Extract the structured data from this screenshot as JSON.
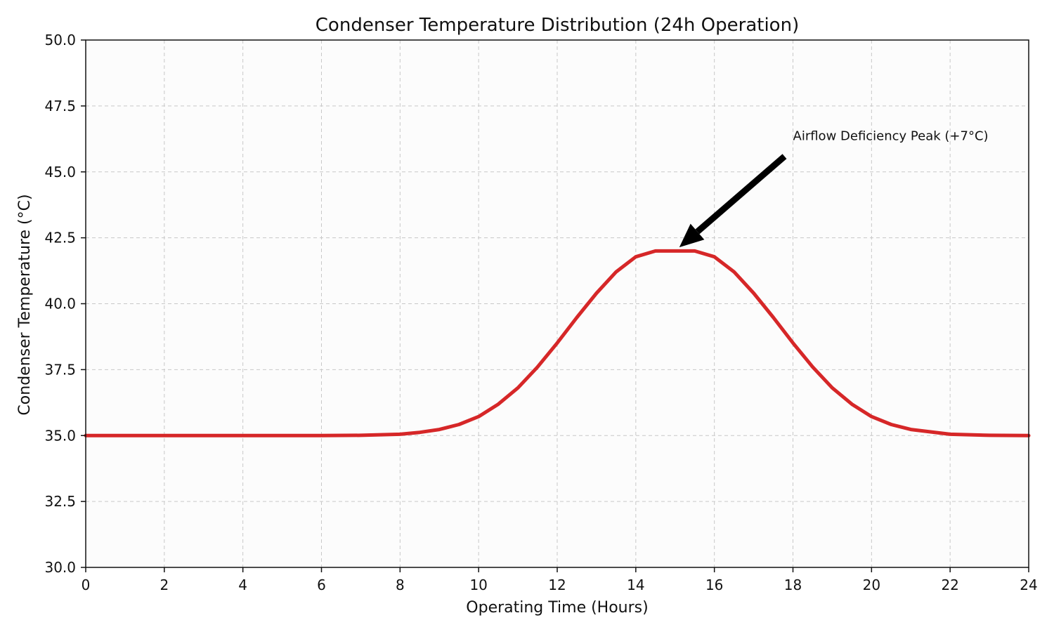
{
  "chart_data": {
    "type": "line",
    "title": "Condenser Temperature Distribution (24h Operation)",
    "xlabel": "Operating Time (Hours)",
    "ylabel": "Condenser Temperature (°C)",
    "xlim": [
      0,
      24
    ],
    "ylim": [
      30,
      50
    ],
    "xticks": [
      0,
      2,
      4,
      6,
      8,
      10,
      12,
      14,
      16,
      18,
      20,
      22,
      24
    ],
    "xtick_labels": [
      "0",
      "2",
      "4",
      "6",
      "8",
      "10",
      "12",
      "14",
      "16",
      "18",
      "20",
      "22",
      "24"
    ],
    "yticks": [
      30,
      32.5,
      35,
      37.5,
      40,
      42.5,
      45,
      47.5,
      50
    ],
    "ytick_labels": [
      "30.0",
      "32.5",
      "35.0",
      "37.5",
      "40.0",
      "42.5",
      "45.0",
      "47.5",
      "50.0"
    ],
    "grid": true,
    "series": [
      {
        "color": "#d62728",
        "x": [
          0,
          1,
          2,
          3,
          4,
          5,
          6,
          7,
          7.5,
          8,
          8.5,
          9,
          9.5,
          10,
          10.5,
          11,
          11.5,
          12,
          12.5,
          13,
          13.5,
          14,
          14.5,
          15,
          15.5,
          16,
          16.5,
          17,
          17.5,
          18,
          18.5,
          19,
          19.5,
          20,
          20.5,
          21,
          22,
          23,
          24
        ],
        "y": [
          35.0,
          35.0,
          35.0,
          35.0,
          35.0,
          35.0,
          35.0,
          35.01,
          35.03,
          35.05,
          35.12,
          35.23,
          35.42,
          35.72,
          36.19,
          36.81,
          37.6,
          38.51,
          39.48,
          40.4,
          41.21,
          41.78,
          42.0,
          42.0,
          42.0,
          41.78,
          41.21,
          40.4,
          39.48,
          38.51,
          37.6,
          36.81,
          36.19,
          35.72,
          35.42,
          35.23,
          35.05,
          35.01,
          35.0
        ]
      }
    ],
    "annotations": [
      {
        "text": "Airflow Deficiency Peak (+7°C)",
        "point": [
          15,
          42
        ],
        "text_at": [
          18,
          46.2
        ],
        "arrow_color": "#000000"
      }
    ]
  }
}
